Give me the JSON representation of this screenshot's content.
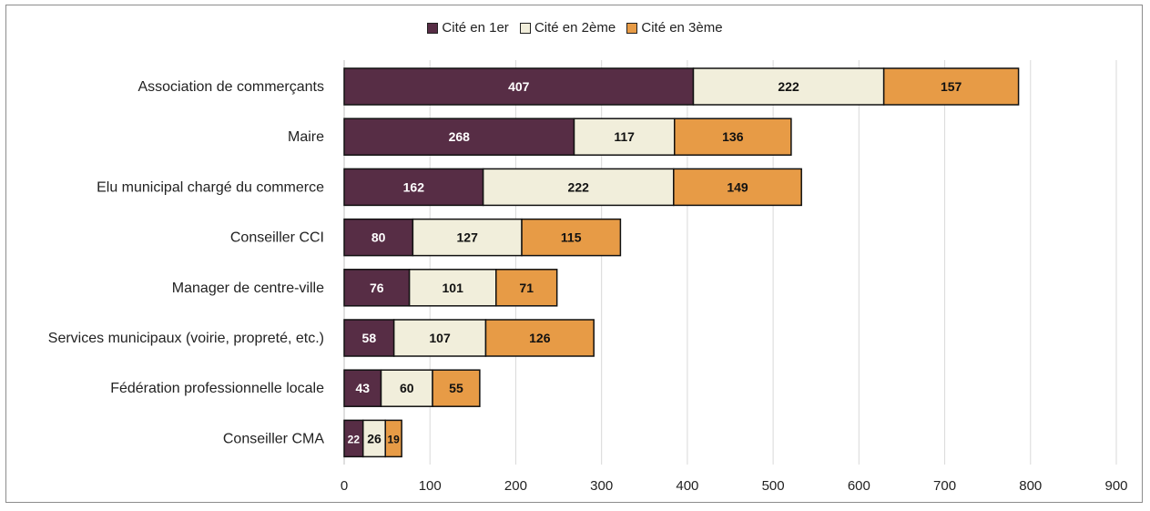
{
  "chart_data": {
    "type": "bar",
    "orientation": "horizontal",
    "stacked": true,
    "title": "",
    "xlabel": "",
    "ylabel": "",
    "xlim": [
      0,
      900
    ],
    "x_ticks": [
      0,
      100,
      200,
      300,
      400,
      500,
      600,
      700,
      800,
      900
    ],
    "grid": "vertical",
    "legend_position": "top",
    "categories": [
      "Association de commerçants",
      "Maire",
      "Elu municipal chargé du commerce",
      "Conseiller CCI",
      "Manager de centre-ville",
      "Services municipaux (voirie, propreté, etc.)",
      "Fédération professionnelle locale",
      "Conseiller CMA"
    ],
    "series": [
      {
        "name": "Cité en 1er",
        "color": "#572d45",
        "label_color": "#ffffff",
        "values": [
          407,
          268,
          162,
          80,
          76,
          58,
          43,
          22
        ]
      },
      {
        "name": "Cité en 2ème",
        "color": "#f1eedb",
        "label_color": "#111111",
        "values": [
          222,
          117,
          222,
          127,
          101,
          107,
          60,
          26
        ]
      },
      {
        "name": "Cité en 3ème",
        "color": "#e79b46",
        "label_color": "#111111",
        "values": [
          157,
          136,
          149,
          115,
          71,
          126,
          55,
          19
        ]
      }
    ]
  }
}
